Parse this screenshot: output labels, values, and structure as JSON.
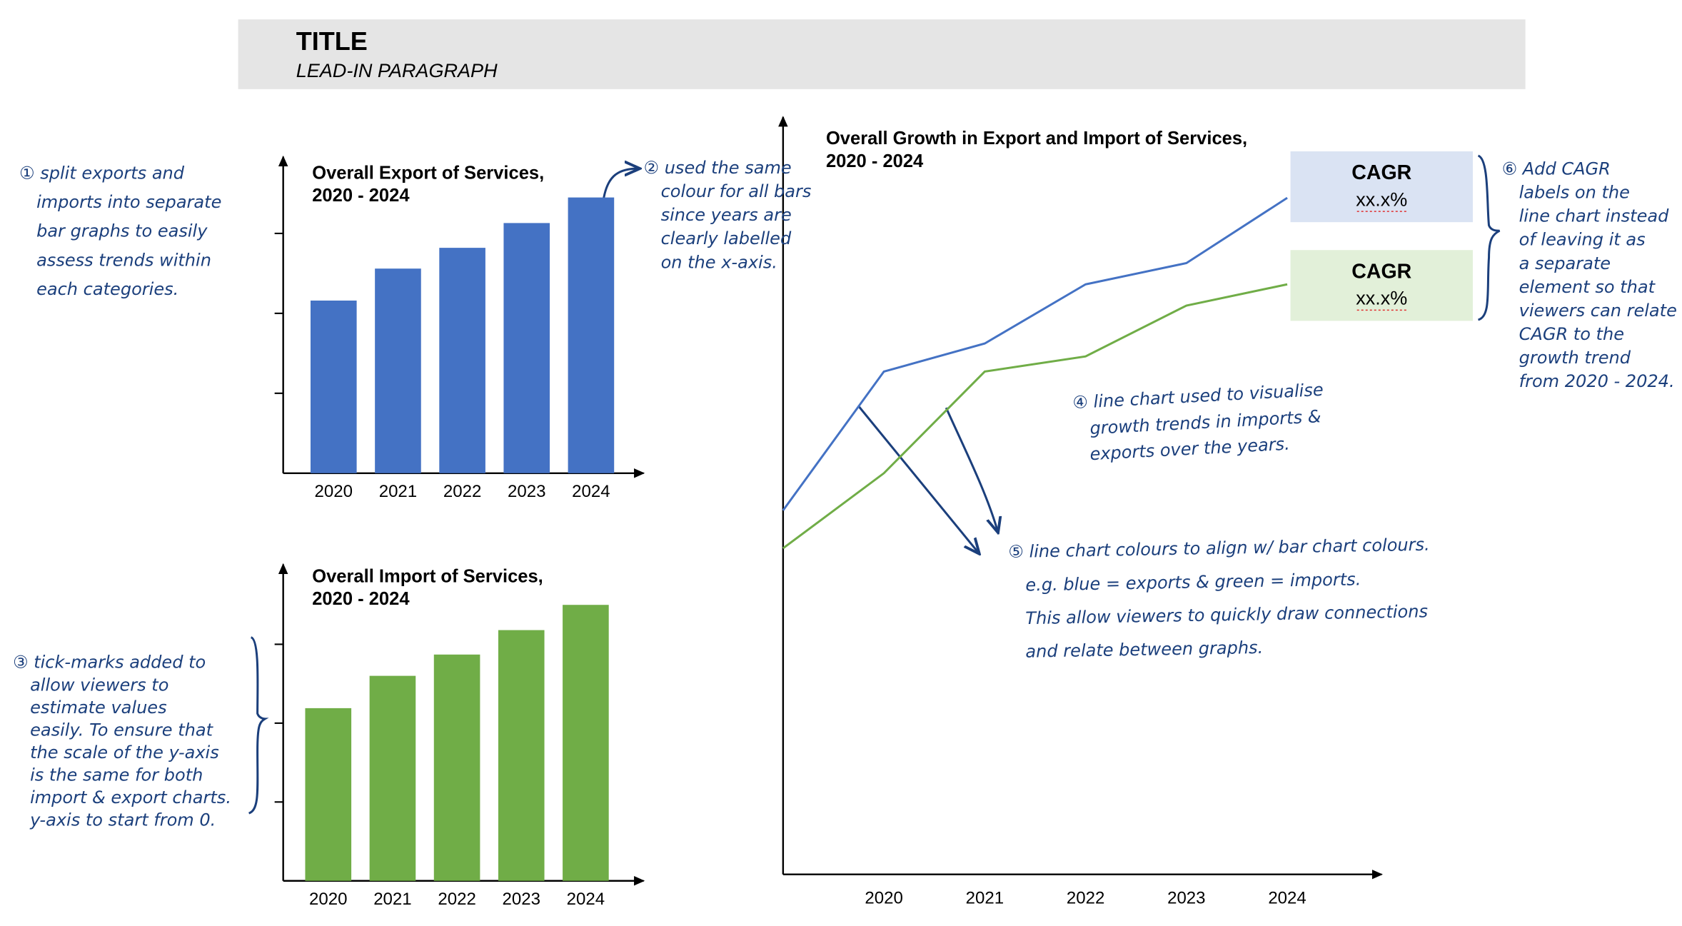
{
  "header": {
    "title": "TITLE",
    "subtitle": "LEAD-IN PARAGRAPH"
  },
  "chart_data": [
    {
      "type": "bar",
      "title": [
        "Overall Export of Services,",
        "2020 - 2024"
      ],
      "categories": [
        "2020",
        "2021",
        "2022",
        "2023",
        "2024"
      ],
      "values": [
        2.16,
        2.56,
        2.82,
        3.13,
        3.45
      ],
      "color": "#4472c4",
      "ylim": [
        0,
        4
      ],
      "yticks": [
        1,
        2,
        3
      ]
    },
    {
      "type": "bar",
      "title": [
        "Overall Import of Services,",
        "2020 - 2024"
      ],
      "categories": [
        "2020",
        "2021",
        "2022",
        "2023",
        "2024"
      ],
      "values": [
        2.19,
        2.6,
        2.87,
        3.18,
        3.5
      ],
      "color": "#70ad47",
      "ylim": [
        0,
        4
      ],
      "yticks": [
        1,
        2,
        3
      ]
    },
    {
      "type": "line",
      "title": [
        "Overall Growth in Export and Import of Services,",
        "2020 - 2024"
      ],
      "categories": [
        null,
        "2020",
        "2021",
        "2022",
        "2023",
        "2024"
      ],
      "ylim": [
        0,
        10
      ],
      "series": [
        {
          "color": "#4472c4",
          "values": [
            4.8,
            6.63,
            7.0,
            7.78,
            8.06,
            8.92
          ]
        },
        {
          "color": "#70ad47",
          "values": [
            4.3,
            5.29,
            6.63,
            6.83,
            7.5,
            7.78
          ]
        }
      ],
      "cagr_labels": [
        {
          "label": "CAGR",
          "value_text": "xx.x%",
          "color": "#dae3f3"
        },
        {
          "label": "CAGR",
          "value_text": "xx.x%",
          "color": "#e2f0d9"
        }
      ]
    }
  ],
  "annotations": [
    [
      "① split exports and",
      "imports into separate",
      "bar graphs to easily",
      "assess trends within",
      "each categories."
    ],
    [
      "② used the same",
      "colour for all bars",
      "since years are",
      "clearly labelled",
      "on the x-axis."
    ],
    [
      "③ tick-marks added to",
      "allow viewers to",
      "estimate values",
      "easily. To ensure that",
      "the scale of the y-axis",
      "is the same for both",
      "import & export charts.",
      "y-axis to start from 0."
    ],
    [
      "④ line chart used to visualise",
      "growth trends in imports &",
      "exports over the years."
    ],
    [
      "⑤ line chart colours to align w/ bar chart colours.",
      "e.g. blue = exports & green = imports.",
      "This allow viewers to quickly draw connections",
      "and relate between graphs."
    ],
    [
      "⑥ Add CAGR",
      "labels on the",
      "line chart instead",
      "of leaving it as",
      "a separate",
      "element so that",
      "viewers can relate",
      "CAGR to the",
      "growth trend",
      "from 2020 - 2024."
    ]
  ]
}
